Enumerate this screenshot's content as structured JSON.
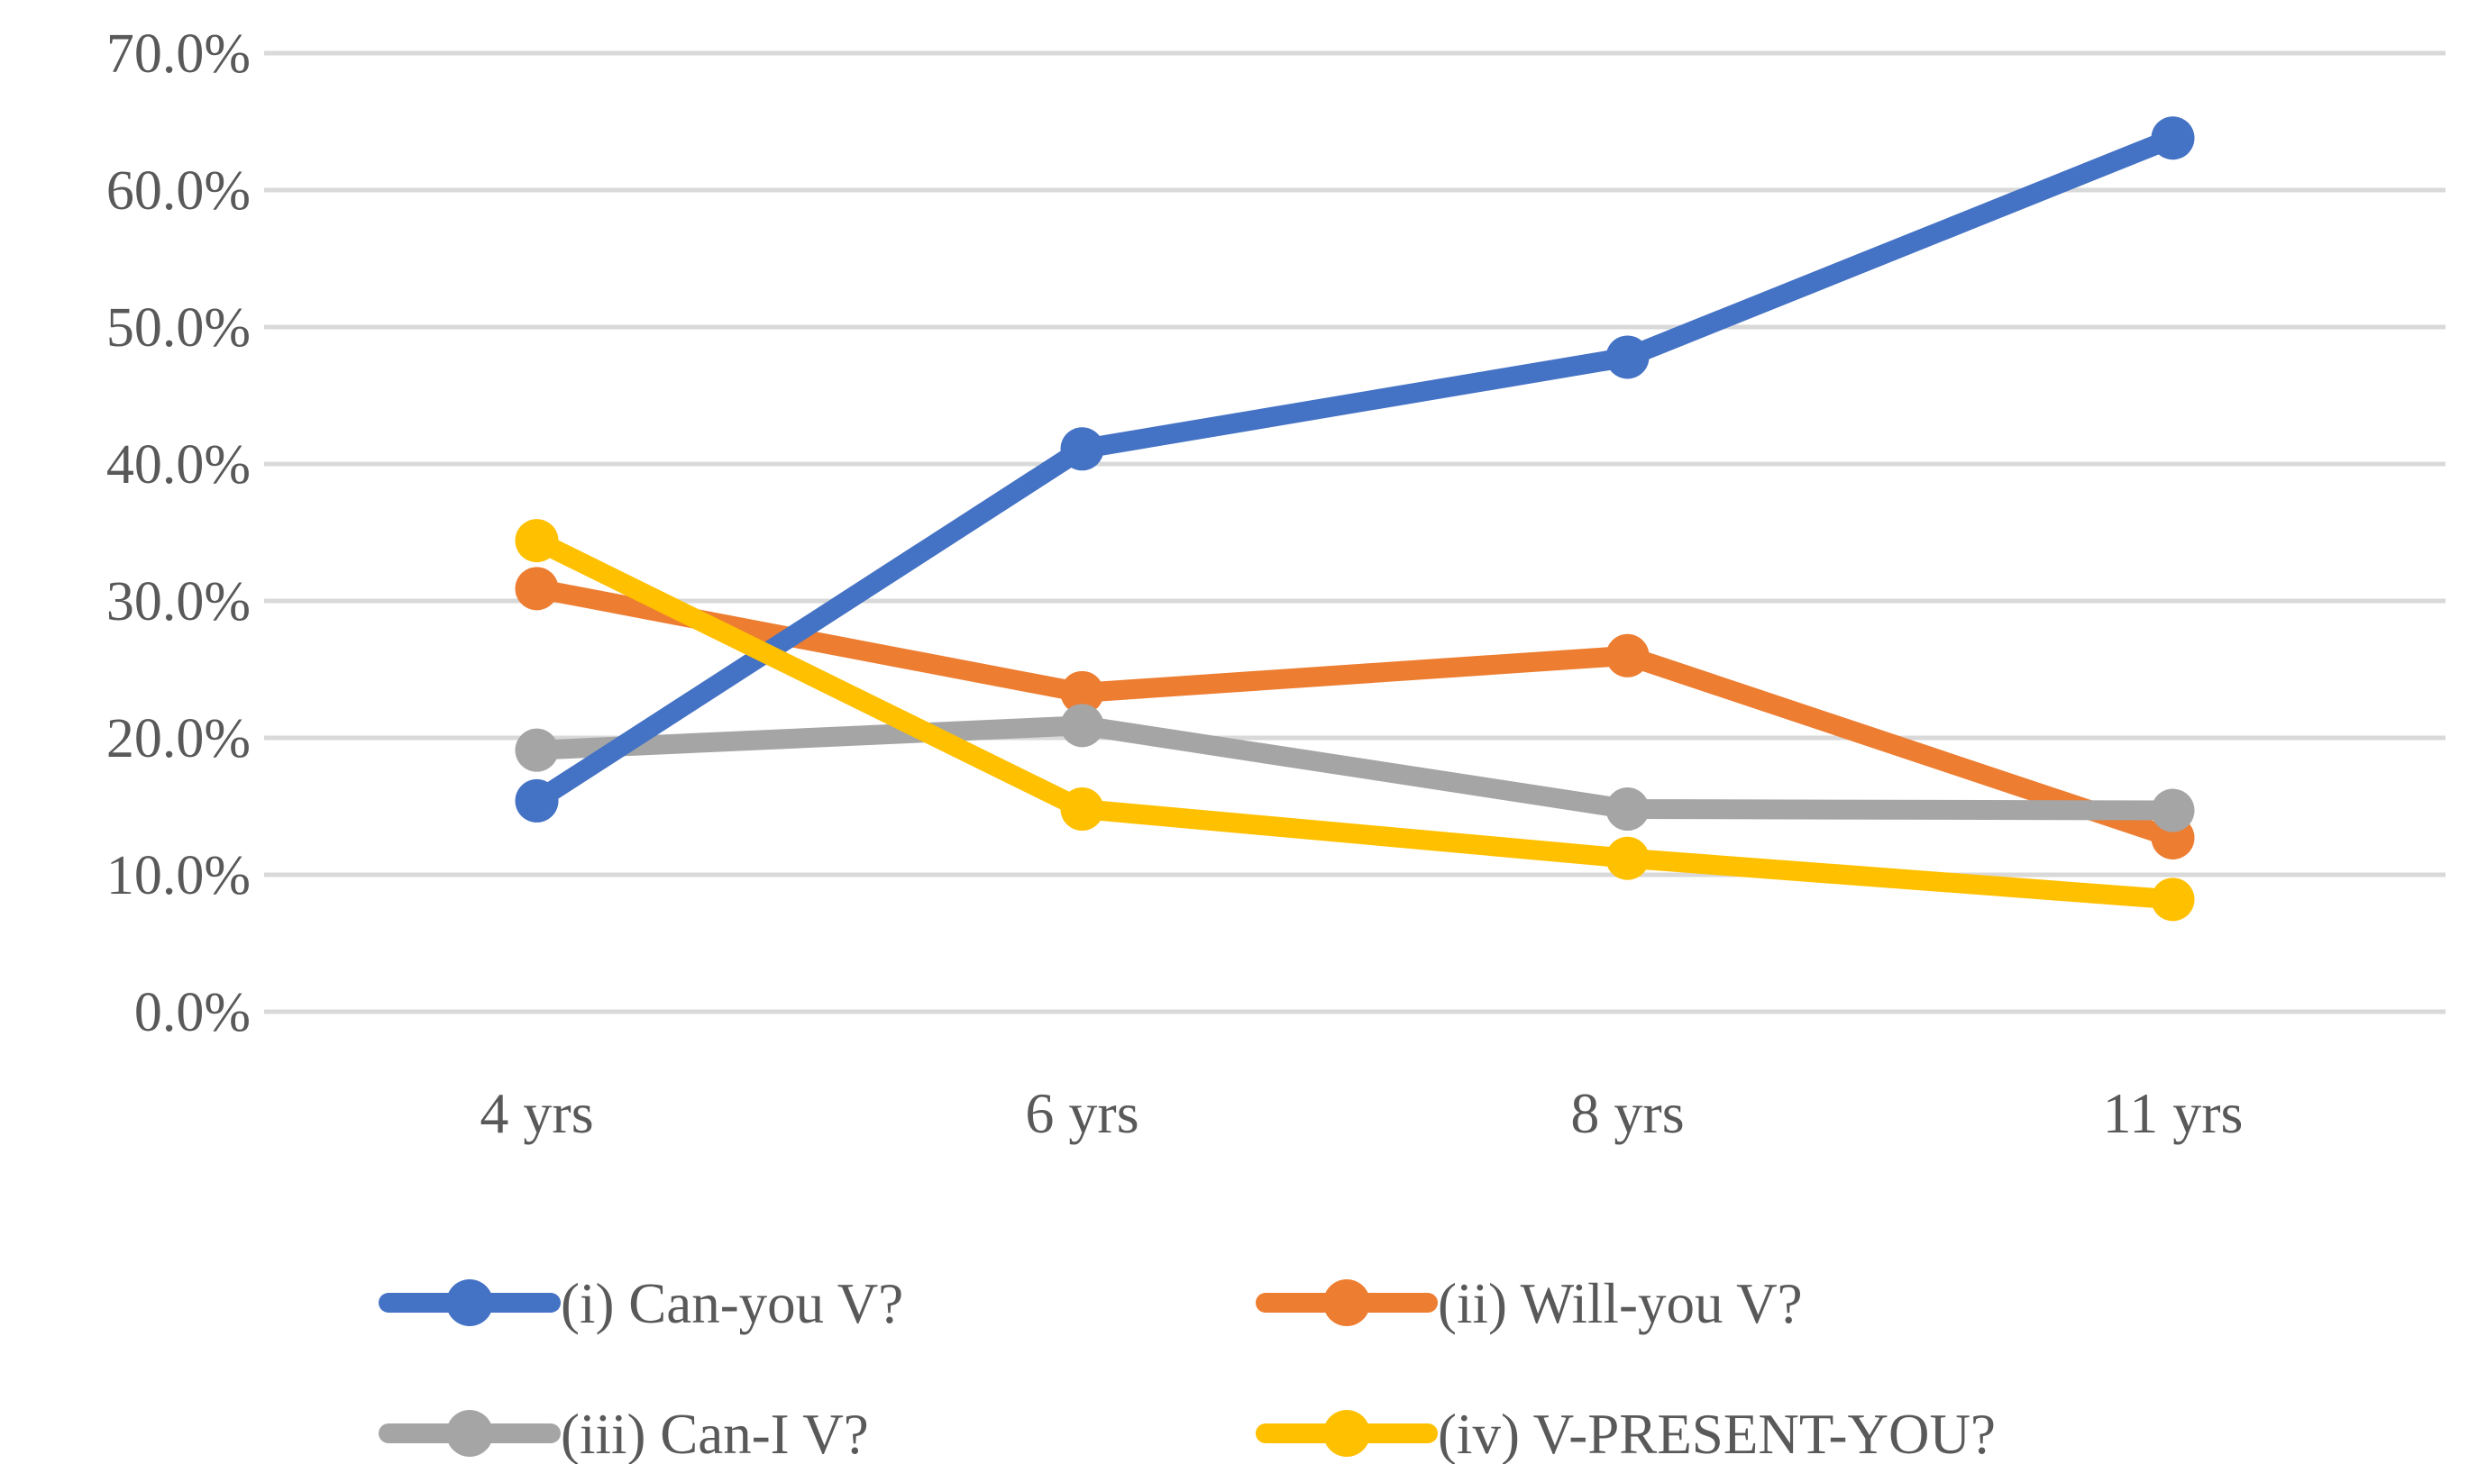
{
  "figure": {
    "background": "#FFFFFF",
    "text_color": "#595959",
    "gridline_color": "#D9D9D9"
  },
  "chart_data": {
    "type": "line",
    "title": "",
    "xlabel": "",
    "ylabel": "",
    "categories": [
      "4 yrs",
      "6 yrs",
      "8 yrs",
      "11 yrs"
    ],
    "series": [
      {
        "name": "(i) Can-you V?",
        "color": "#4472C4",
        "values": [
          15.4,
          41.1,
          47.8,
          63.8
        ]
      },
      {
        "name": "(ii) Will-you V?",
        "color": "#ED7D31",
        "values": [
          30.9,
          23.3,
          26.0,
          12.7
        ]
      },
      {
        "name": "(iii) Can-I V?",
        "color": "#A5A5A5",
        "values": [
          19.1,
          20.9,
          14.8,
          14.7
        ]
      },
      {
        "name": "(iv) V-PRESENT-YOU?",
        "color": "#FFC000",
        "values": [
          34.4,
          14.8,
          11.2,
          8.2
        ]
      }
    ],
    "y_axis": {
      "min": 0,
      "max": 70,
      "step": 10,
      "tick_labels": [
        "0.0%",
        "10.0%",
        "20.0%",
        "30.0%",
        "40.0%",
        "50.0%",
        "60.0%",
        "70.0%"
      ],
      "format": "percent_one_decimal"
    },
    "grid": true,
    "legend": {
      "position": "bottom",
      "columns": 2,
      "marker": "line-with-circle"
    },
    "z_order_indices": [
      1,
      2,
      0,
      3
    ]
  }
}
